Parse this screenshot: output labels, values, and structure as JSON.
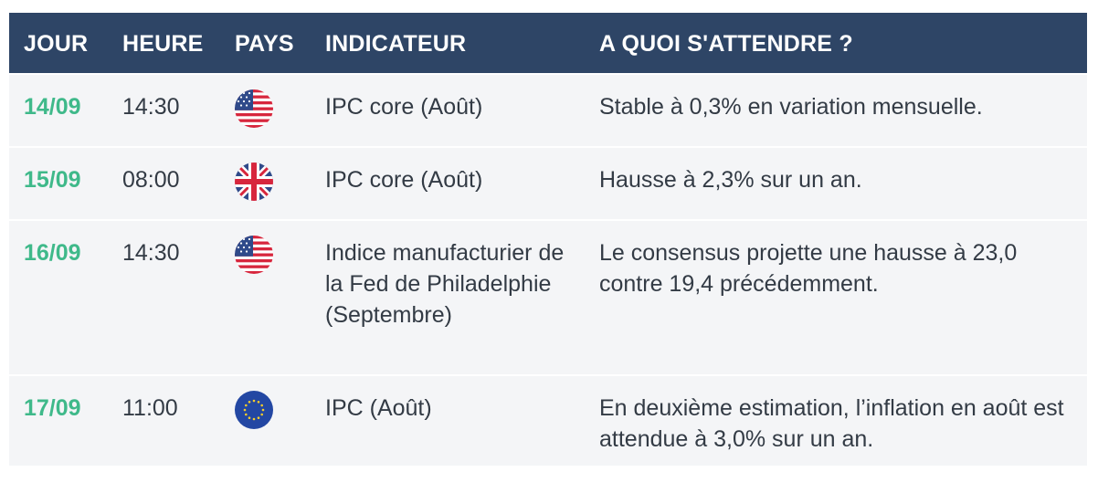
{
  "header": {
    "jour": "JOUR",
    "heure": "HEURE",
    "pays": "PAYS",
    "indicateur": "INDICATEUR",
    "attendre": "A QUOI S'ATTENDRE ?"
  },
  "rows": [
    {
      "jour": "14/09",
      "heure": "14:30",
      "pays_icon": "us-flag-icon",
      "indicateur": "IPC core (Août)",
      "attendre": "Stable à 0,3% en variation mensuelle."
    },
    {
      "jour": "15/09",
      "heure": "08:00",
      "pays_icon": "uk-flag-icon",
      "indicateur": "IPC core (Août)",
      "attendre": "Hausse à 2,3% sur un an."
    },
    {
      "jour": "16/09",
      "heure": "14:30",
      "pays_icon": "us-flag-icon",
      "indicateur": "Indice manufacturier de la Fed de Philadelphie (Septembre)",
      "attendre": "Le consensus projette une hausse à 23,0 contre 19,4 précédemment."
    },
    {
      "jour": "17/09",
      "heure": "11:00",
      "pays_icon": "eu-flag-icon",
      "indicateur": "IPC (Août)",
      "attendre": "En deuxième estimation, l’inflation en août est attendue à 3,0% sur un an."
    }
  ],
  "colors": {
    "header_bg": "#2e4566",
    "row_bg": "#f4f5f7",
    "day_text": "#3fb98a",
    "body_text": "#333b45"
  }
}
